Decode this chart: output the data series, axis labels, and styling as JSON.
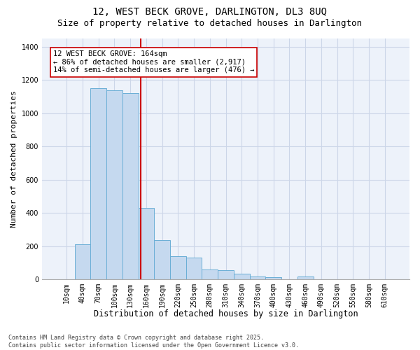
{
  "title": "12, WEST BECK GROVE, DARLINGTON, DL3 8UQ",
  "subtitle": "Size of property relative to detached houses in Darlington",
  "xlabel": "Distribution of detached houses by size in Darlington",
  "ylabel": "Number of detached properties",
  "bar_labels": [
    "10sqm",
    "40sqm",
    "70sqm",
    "100sqm",
    "130sqm",
    "160sqm",
    "190sqm",
    "220sqm",
    "250sqm",
    "280sqm",
    "310sqm",
    "340sqm",
    "370sqm",
    "400sqm",
    "430sqm",
    "460sqm",
    "490sqm",
    "520sqm",
    "550sqm",
    "580sqm",
    "610sqm"
  ],
  "bar_values": [
    0,
    210,
    1150,
    1140,
    1120,
    430,
    235,
    140,
    130,
    60,
    55,
    35,
    18,
    12,
    0,
    18,
    0,
    0,
    0,
    0,
    0
  ],
  "bar_color": "#c5d9ef",
  "bar_edge_color": "#6aaed6",
  "red_line_color": "#cc0000",
  "grid_color": "#ccd6e8",
  "bg_color": "#edf2fa",
  "ylim": [
    0,
    1450
  ],
  "yticks": [
    0,
    200,
    400,
    600,
    800,
    1000,
    1200,
    1400
  ],
  "annotation_text_line1": "12 WEST BECK GROVE: 164sqm",
  "annotation_text_line2": "← 86% of detached houses are smaller (2,917)",
  "annotation_text_line3": "14% of semi-detached houses are larger (476) →",
  "footer_line1": "Contains HM Land Registry data © Crown copyright and database right 2025.",
  "footer_line2": "Contains public sector information licensed under the Open Government Licence v3.0.",
  "title_fontsize": 10,
  "subtitle_fontsize": 9,
  "tick_fontsize": 7,
  "ylabel_fontsize": 8,
  "xlabel_fontsize": 8.5,
  "annotation_fontsize": 7.5,
  "footer_fontsize": 6
}
